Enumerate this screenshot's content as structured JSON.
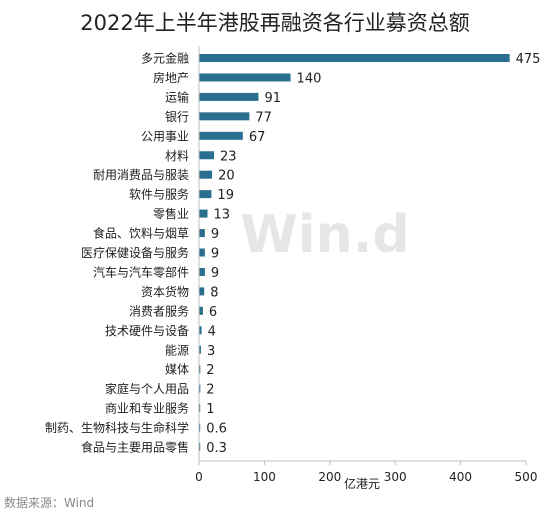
{
  "chart_data": {
    "type": "bar",
    "orientation": "horizontal",
    "title": "2022年上半年港股再融资各行业募资总额",
    "xlabel": "亿港元",
    "ylabel": "",
    "xlim": [
      0,
      500
    ],
    "xticks": [
      "0",
      "100",
      "200",
      "300",
      "400",
      "500"
    ],
    "grid": false,
    "bar_color": "#2a6f8f",
    "categories": [
      "多元金融",
      "房地产",
      "运输",
      "银行",
      "公用事业",
      "材料",
      "耐用消费品与服装",
      "软件与服务",
      "零售业",
      "食品、饮料与烟草",
      "医疗保健设备与服务",
      "汽车与汽车零部件",
      "资本货物",
      "消费者服务",
      "技术硬件与设备",
      "能源",
      "媒体",
      "家庭与个人用品",
      "商业和专业服务",
      "制药、生物科技与生命科学",
      "食品与主要用品零售"
    ],
    "values": [
      475,
      140,
      91,
      77,
      67,
      23,
      20,
      19,
      13,
      9,
      9,
      9,
      8,
      6,
      4,
      3,
      2,
      2,
      1,
      0.6,
      0.3
    ],
    "value_labels": [
      "475",
      "140",
      "91",
      "77",
      "67",
      "23",
      "20",
      "19",
      "13",
      "9",
      "9",
      "9",
      "8",
      "6",
      "4",
      "3",
      "2",
      "2",
      "1",
      "0.6",
      "0.3"
    ]
  },
  "watermark": "Win.d",
  "source": "数据来源：Wind"
}
